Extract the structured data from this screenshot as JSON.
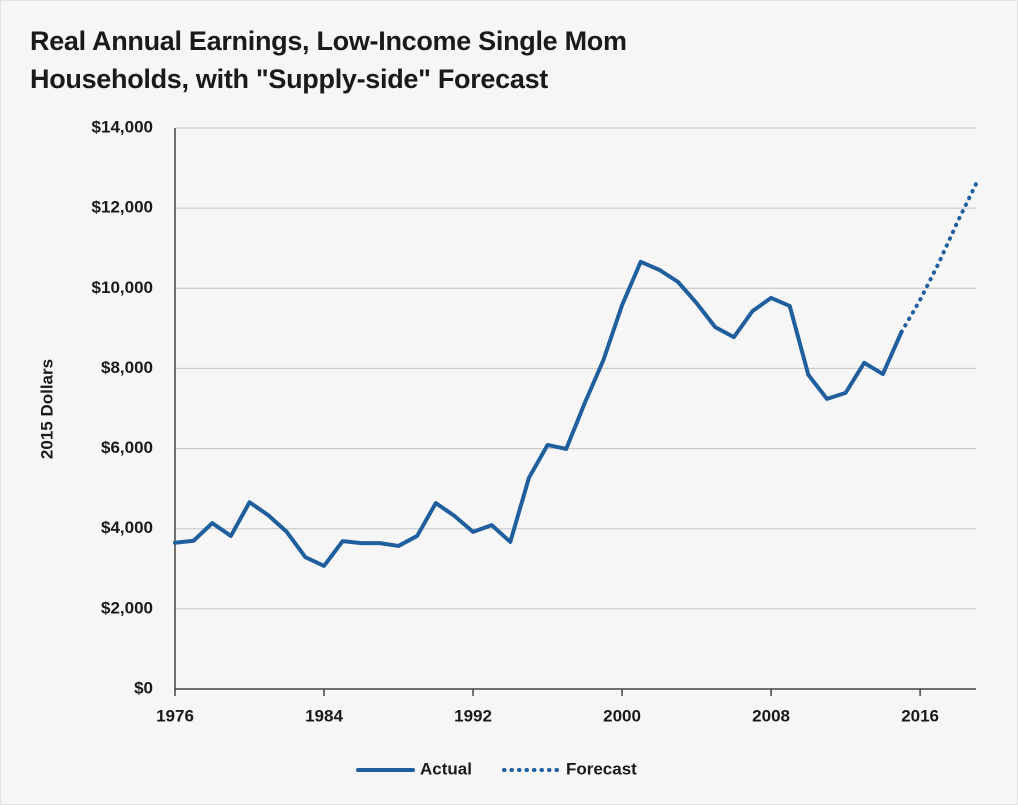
{
  "chart_data": {
    "type": "line",
    "title": "Real Annual Earnings, Low-Income Single Mom Households, with \"Supply-side\" Forecast",
    "y_label": "2015 Dollars",
    "xlim": [
      1976,
      2019
    ],
    "xticks": [
      1976,
      1984,
      1992,
      2000,
      2008,
      2016
    ],
    "ylim": [
      0,
      14000
    ],
    "yticks": [
      {
        "value": 0,
        "label": "$0"
      },
      {
        "value": 2000,
        "label": "$2,000"
      },
      {
        "value": 4000,
        "label": "$4,000"
      },
      {
        "value": 6000,
        "label": "$6,000"
      },
      {
        "value": 8000,
        "label": "$8,000"
      },
      {
        "value": 10000,
        "label": "$10,000"
      },
      {
        "value": 12000,
        "label": "$12,000"
      },
      {
        "value": 14000,
        "label": "$14,000"
      }
    ],
    "grid": true,
    "legend": "bottom",
    "series": [
      {
        "name": "Actual",
        "color": "#1f5f9e",
        "style": "solid",
        "x": [
          1976,
          1977,
          1978,
          1979,
          1980,
          1981,
          1982,
          1983,
          1984,
          1985,
          1986,
          1987,
          1988,
          1989,
          1990,
          1991,
          1992,
          1993,
          1994,
          1995,
          1996,
          1997,
          1998,
          1999,
          2000,
          2001,
          2002,
          2003,
          2004,
          2005,
          2006,
          2007,
          2008,
          2009,
          2010,
          2011,
          2012,
          2013,
          2014,
          2015
        ],
        "values": [
          3650,
          3700,
          4140,
          3820,
          4660,
          4340,
          3920,
          3290,
          3070,
          3690,
          3640,
          3640,
          3570,
          3820,
          4640,
          4320,
          3920,
          4090,
          3670,
          5270,
          6090,
          5990,
          7140,
          8210,
          9580,
          10660,
          10460,
          10160,
          9630,
          9030,
          8780,
          9430,
          9760,
          9560,
          7840,
          7240,
          7390,
          8140,
          7860,
          8910
        ]
      },
      {
        "name": "Forecast",
        "color": "#1f5f9e",
        "style": "dotted",
        "x": [
          2015,
          2016,
          2017,
          2018,
          2019
        ],
        "values": [
          8910,
          9710,
          10630,
          11650,
          12600
        ]
      }
    ]
  }
}
